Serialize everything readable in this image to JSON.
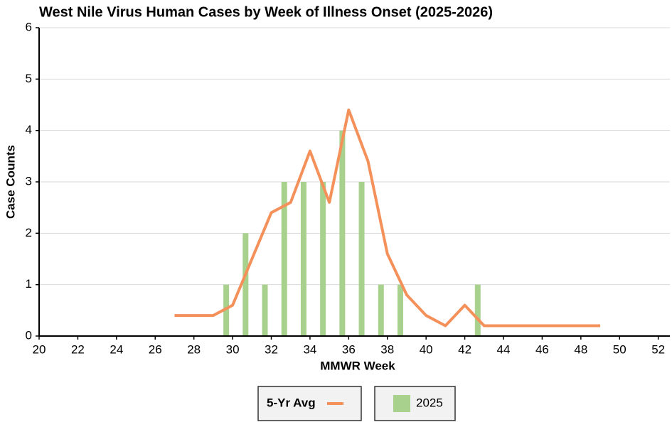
{
  "chart_data": {
    "type": "combo",
    "title": "West Nile Virus Human Cases by Week of Illness Onset (2025-2026)",
    "x_label": "MMWR Week",
    "y_label": "Case Counts",
    "x": [
      27,
      28,
      29,
      30,
      31,
      32,
      33,
      34,
      35,
      36,
      37,
      38,
      39,
      40,
      41,
      42,
      43,
      44,
      45,
      46,
      47,
      48,
      49
    ],
    "series": [
      {
        "name": "5-Yr Avg",
        "type": "line",
        "color": "#f4915b",
        "values": [
          0.4,
          0.4,
          0.4,
          0.6,
          1.5,
          2.4,
          2.6,
          3.6,
          2.6,
          4.4,
          3.4,
          1.6,
          0.8,
          0.4,
          0.2,
          0.6,
          0.2,
          0.2,
          0.2,
          0.2,
          0.2,
          0.2,
          0.2
        ]
      },
      {
        "name": "2025",
        "type": "bar",
        "color": "#a9d18e",
        "values": [
          0,
          0,
          0,
          1,
          2,
          1,
          3,
          3,
          3,
          4,
          3,
          1,
          1,
          0,
          0,
          0,
          1,
          0,
          0,
          0,
          0,
          0,
          0
        ]
      }
    ],
    "xlim": [
      20,
      52.6
    ],
    "xticks": [
      20,
      22,
      24,
      26,
      28,
      30,
      32,
      34,
      36,
      38,
      40,
      42,
      44,
      46,
      48,
      50,
      52
    ],
    "ylim": [
      0,
      6
    ],
    "yticks": [
      0,
      1,
      2,
      3,
      4,
      5,
      6
    ],
    "grid": true
  }
}
